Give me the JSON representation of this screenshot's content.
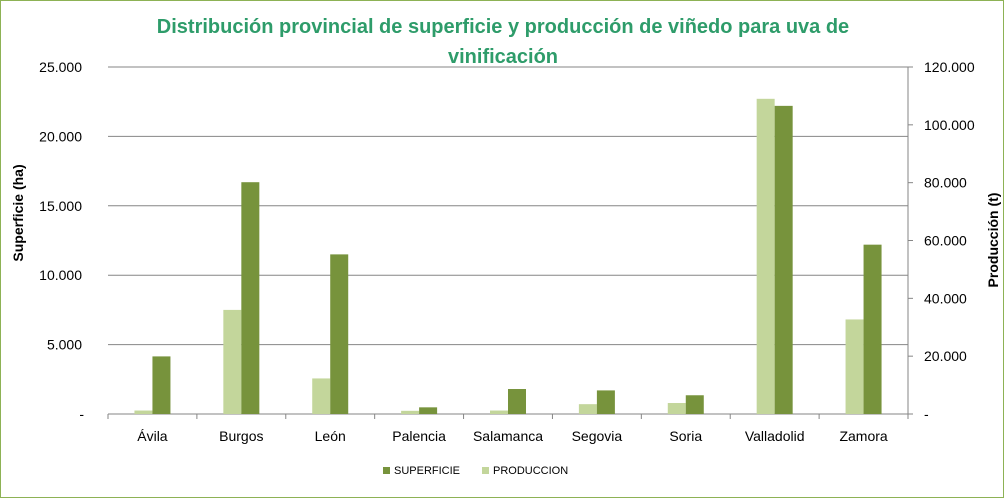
{
  "chart_data": {
    "type": "bar",
    "title": "Distribución provincial de superficie y producción de viñedo para uva de vinificación",
    "ylabel_left": "Superficie (ha)",
    "ylabel_right": "Producción (t)",
    "categories": [
      "Ávila",
      "Burgos",
      "León",
      "Palencia",
      "Salamanca",
      "Segovia",
      "Soria",
      "Valladolid",
      "Zamora"
    ],
    "series": [
      {
        "name": "PRODUCCION",
        "axis": "right",
        "color": "#c3d69b",
        "values": [
          1200,
          36000,
          12300,
          1100,
          1200,
          3400,
          3800,
          109000,
          32700
        ]
      },
      {
        "name": "SUPERFICIE",
        "axis": "left",
        "color": "#77933c",
        "values": [
          4150,
          16700,
          11500,
          480,
          1800,
          1700,
          1350,
          22200,
          12200
        ]
      }
    ],
    "ylim_left": [
      0,
      25000
    ],
    "ylim_right": [
      0,
      120000
    ],
    "left_ticks": [
      {
        "value": 0,
        "label": "-"
      },
      {
        "value": 5000,
        "label": "5.000"
      },
      {
        "value": 10000,
        "label": "10.000"
      },
      {
        "value": 15000,
        "label": "15.000"
      },
      {
        "value": 20000,
        "label": "20.000"
      },
      {
        "value": 25000,
        "label": "25.000"
      }
    ],
    "right_ticks": [
      {
        "value": 0,
        "label": "-"
      },
      {
        "value": 20000,
        "label": "20.000"
      },
      {
        "value": 40000,
        "label": "40.000"
      },
      {
        "value": 60000,
        "label": "60.000"
      },
      {
        "value": 80000,
        "label": "80.000"
      },
      {
        "value": 100000,
        "label": "100.000"
      },
      {
        "value": 120000,
        "label": "120.000"
      }
    ],
    "legend": [
      {
        "label": "SUPERFICIE",
        "color": "#77933c"
      },
      {
        "label": "PRODUCCION",
        "color": "#c3d69b"
      }
    ],
    "legend_position": "bottom",
    "grid": true
  }
}
